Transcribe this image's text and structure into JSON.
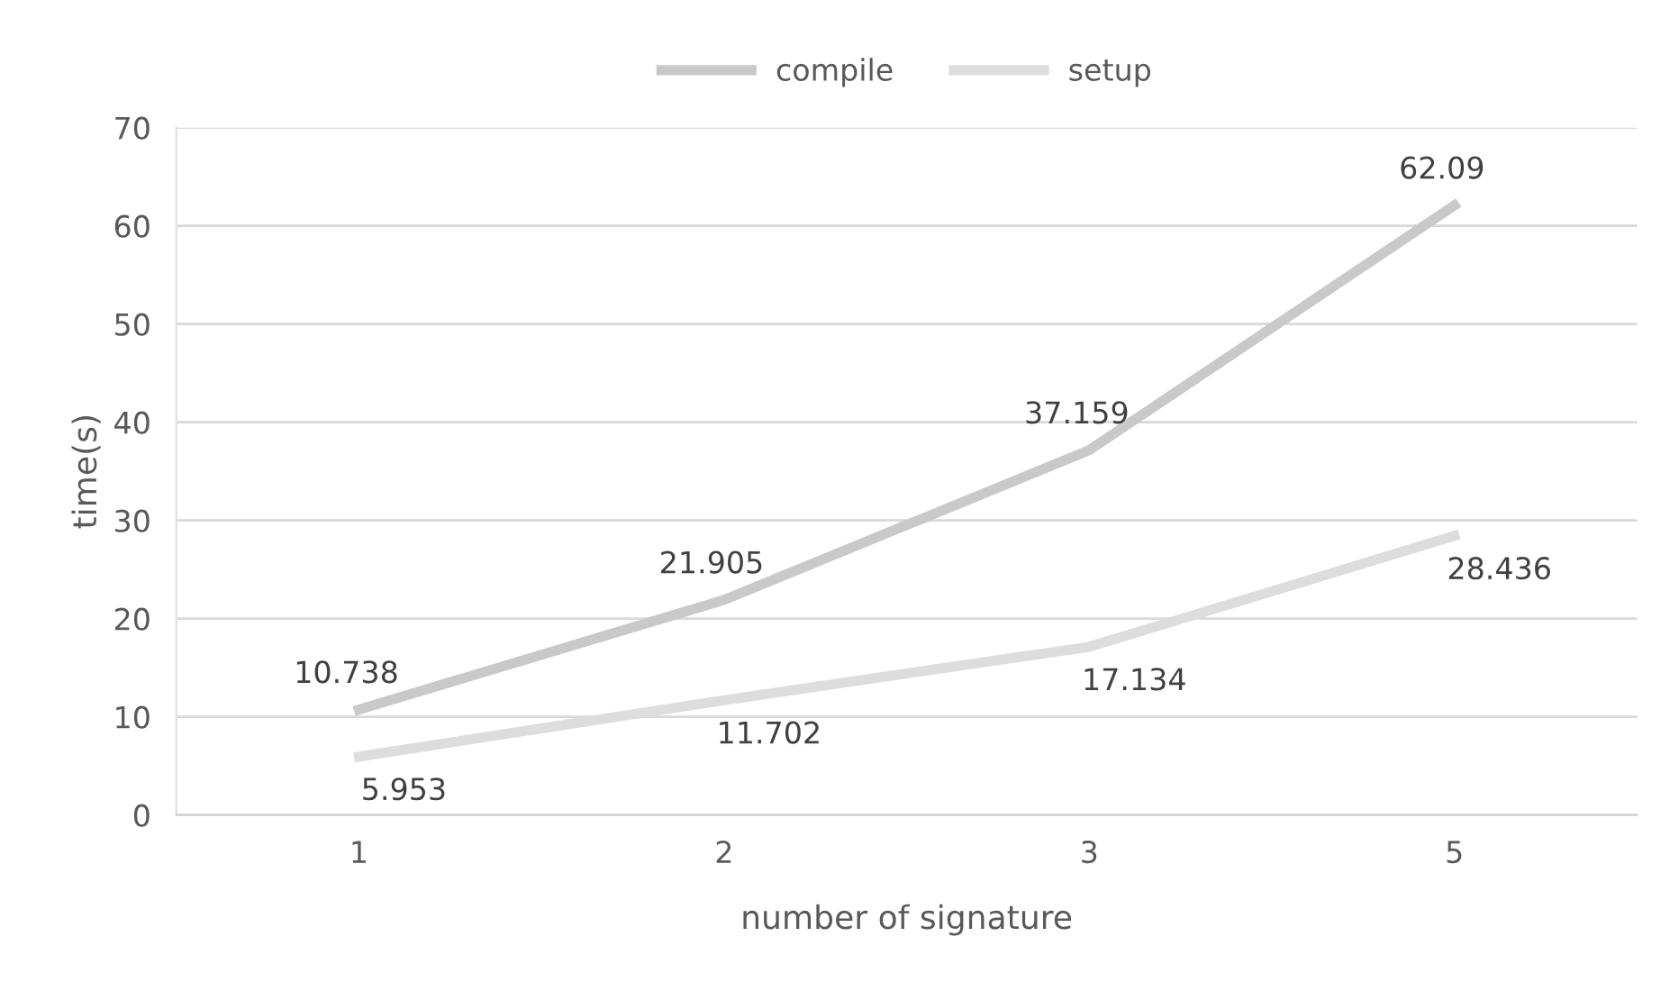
{
  "chart_data": {
    "type": "line",
    "xlabel": "number of signature",
    "ylabel": "time(s)",
    "categories": [
      "1",
      "2",
      "3",
      "5"
    ],
    "series": [
      {
        "name": "compile",
        "color": "#c9c9c9",
        "values": [
          10.738,
          21.905,
          37.159,
          62.09
        ]
      },
      {
        "name": "setup",
        "color": "#dddddd",
        "values": [
          5.953,
          11.702,
          17.134,
          28.436
        ]
      }
    ],
    "ylim": [
      0,
      70
    ],
    "yticks": [
      0,
      10,
      20,
      30,
      40,
      50,
      60,
      70
    ],
    "grid": "y",
    "legend": "top",
    "data_labels": true,
    "marker": "none",
    "line_style": "solid"
  }
}
